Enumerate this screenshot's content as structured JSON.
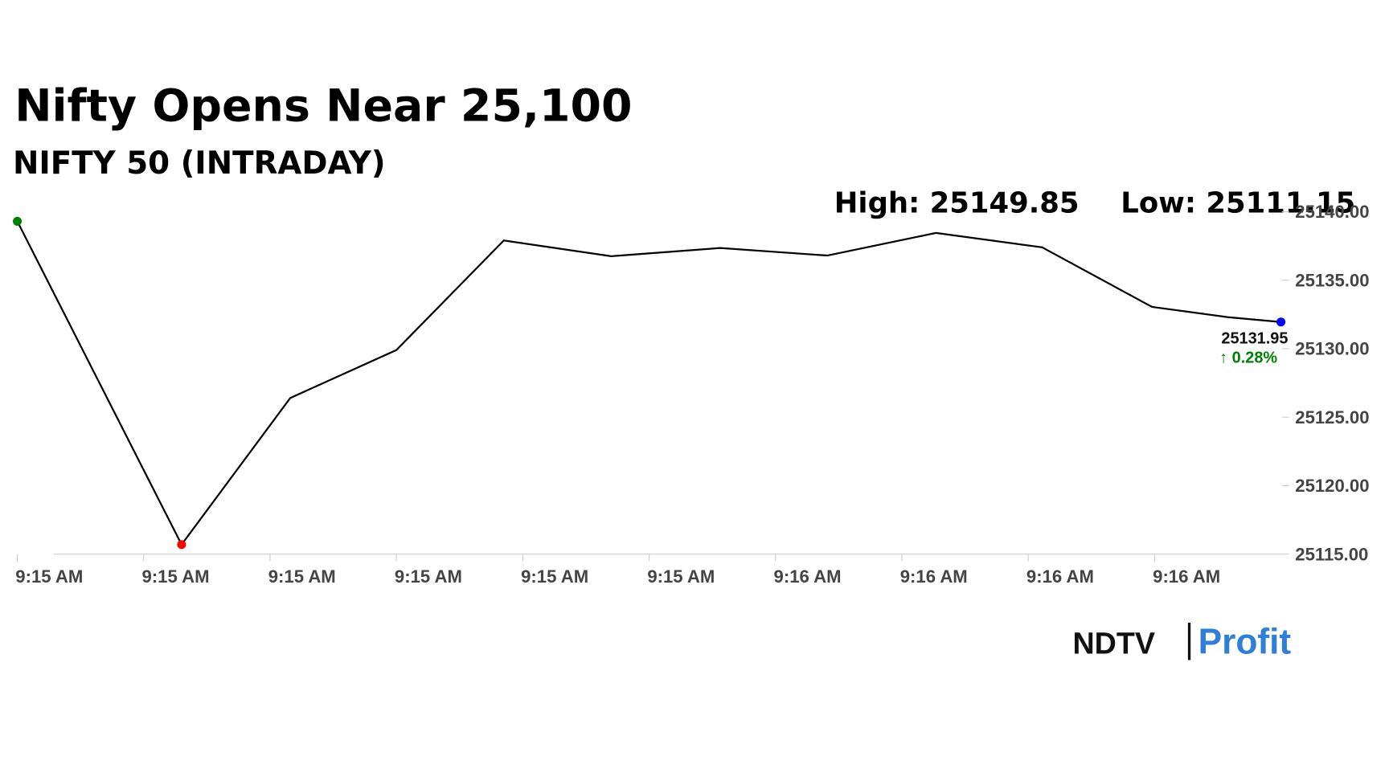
{
  "chart_data": {
    "type": "line",
    "title": "Nifty Opens Near 25,100",
    "subtitle": "NIFTY 50 (INTRADAY)",
    "annotations": [
      "High: 25149.85",
      "Low: 25111.15"
    ],
    "last_label": "25131.95",
    "change_label": "↑ 0.28%",
    "x": [
      0,
      1.3,
      2.16,
      3.0,
      3.85,
      4.7,
      5.56,
      6.41,
      7.27,
      8.11,
      8.98,
      9.58,
      10.0
    ],
    "series": [
      {
        "color": "#000000",
        "values": [
          25139.3,
          25115.7,
          25126.4,
          25129.9,
          25137.9,
          25136.75,
          25137.35,
          25136.8,
          25138.45,
          25137.4,
          25133.05,
          25132.3,
          25131.95
        ]
      }
    ],
    "marker_colors": {
      "first": "#008000",
      "min": "#ff0000",
      "last": "#0000ff"
    },
    "change_color": "#008000",
    "xlim": [
      0,
      10
    ],
    "xticks": [
      {
        "value": 0,
        "label": "9:15 AM"
      },
      {
        "value": 1,
        "label": "9:15 AM"
      },
      {
        "value": 2,
        "label": "9:15 AM"
      },
      {
        "value": 3,
        "label": "9:15 AM"
      },
      {
        "value": 4,
        "label": "9:15 AM"
      },
      {
        "value": 5,
        "label": "9:15 AM"
      },
      {
        "value": 6,
        "label": "9:16 AM"
      },
      {
        "value": 7,
        "label": "9:16 AM"
      },
      {
        "value": 8,
        "label": "9:16 AM"
      },
      {
        "value": 9,
        "label": "9:16 AM"
      }
    ],
    "ylim": [
      25115,
      25140
    ],
    "yticks": [
      {
        "value": 25115,
        "label": "25115.00"
      },
      {
        "value": 25120,
        "label": "25120.00"
      },
      {
        "value": 25125,
        "label": "25125.00"
      },
      {
        "value": 25130,
        "label": "25130.00"
      },
      {
        "value": 25135,
        "label": "25135.00"
      },
      {
        "value": 25140,
        "label": "25140.00"
      }
    ],
    "y_axis_side": "right",
    "grid": false
  },
  "brand": {
    "left": "NDTV",
    "right": "Profit"
  }
}
